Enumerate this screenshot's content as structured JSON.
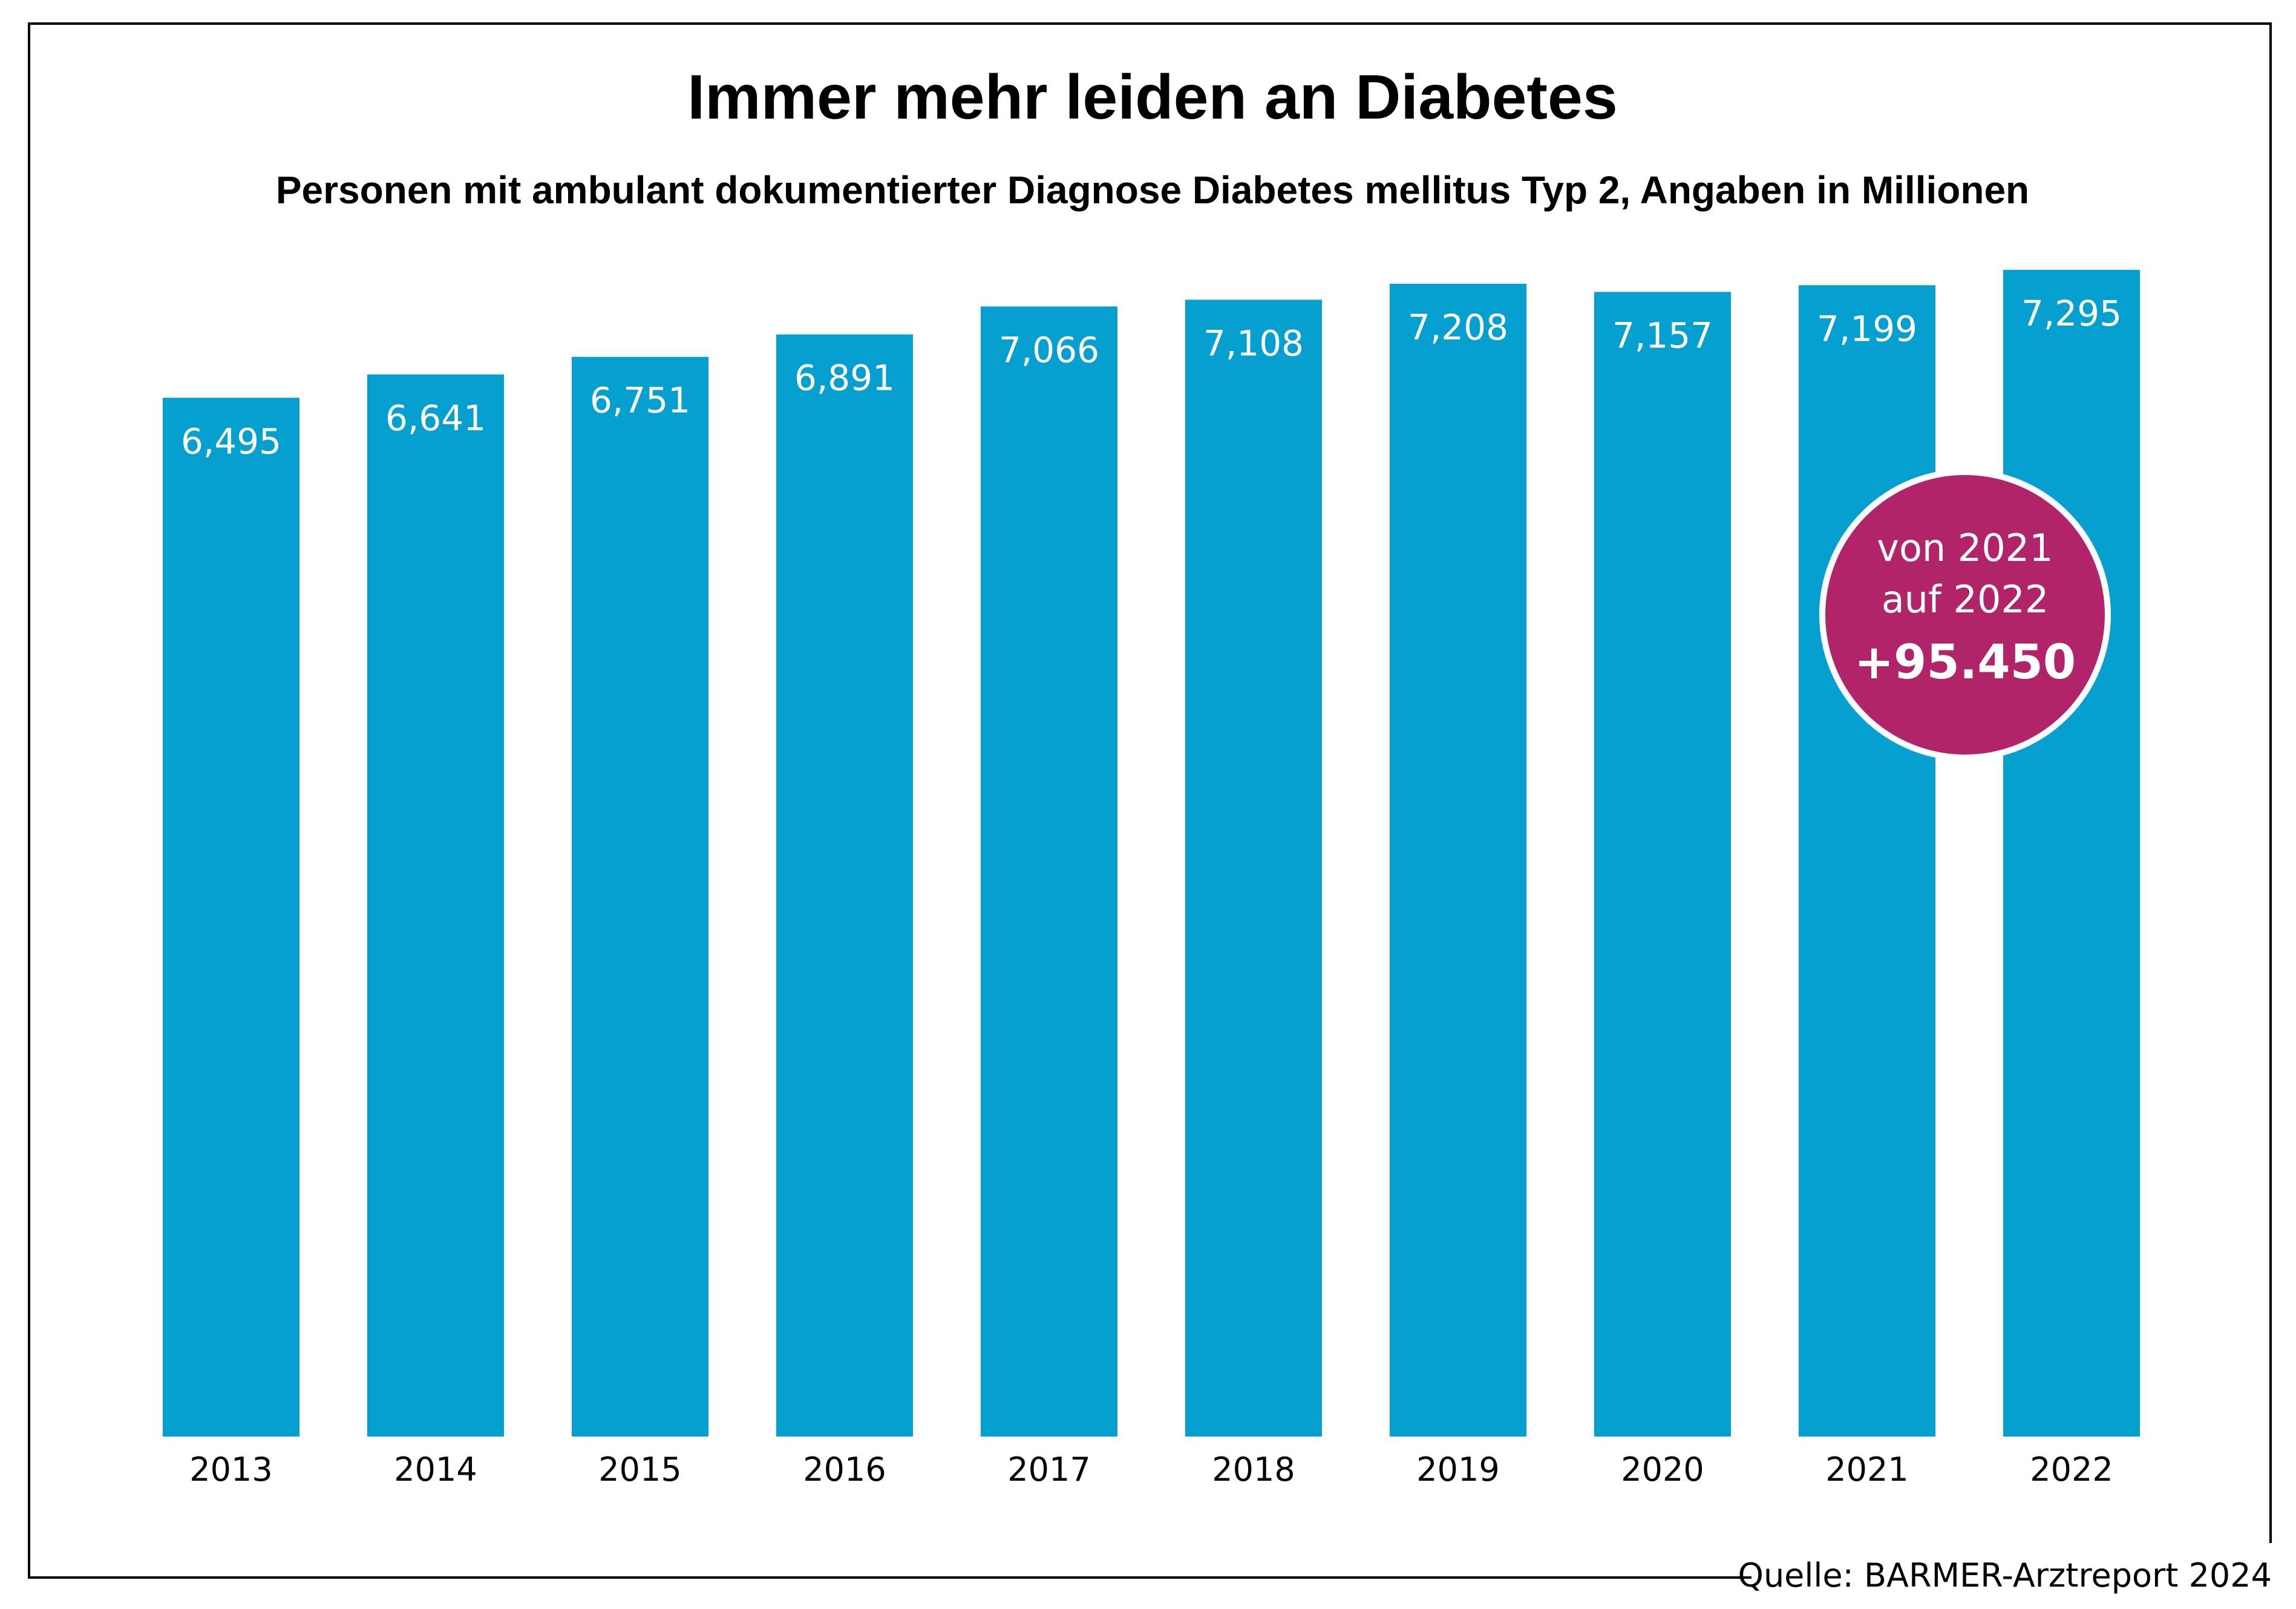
{
  "chart_data": {
    "type": "bar",
    "title": "Immer mehr leiden an Diabetes",
    "subtitle": "Personen mit ambulant dokumentierter Diagnose Diabetes mellitus Typ 2, Angaben in Millionen",
    "xlabel": "",
    "ylabel": "",
    "categories": [
      "2013",
      "2014",
      "2015",
      "2016",
      "2017",
      "2018",
      "2019",
      "2020",
      "2021",
      "2022"
    ],
    "values": [
      6.495,
      6.641,
      6.751,
      6.891,
      7.066,
      7.108,
      7.208,
      7.157,
      7.199,
      7.295
    ],
    "value_labels": [
      "6,495",
      "6,641",
      "6,751",
      "6,891",
      "7,066",
      "7,108",
      "7,208",
      "7,157",
      "7,199",
      "7,295"
    ],
    "ylim": [
      0,
      7.5
    ],
    "grid": false,
    "legend": "none",
    "bar_color": "#05A0D0",
    "annotation": {
      "line1": "von 2021",
      "line2": "auf 2022",
      "value": "+95.450",
      "color": "#B2246A",
      "placement": "over 2021-2022 bars"
    },
    "source": "Quelle: BARMER-Arztreport 2024"
  }
}
